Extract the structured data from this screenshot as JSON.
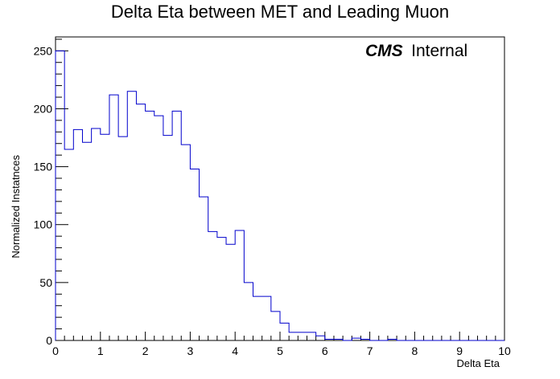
{
  "chart_data": {
    "type": "bar",
    "style": "step-histogram",
    "title": "Delta Eta between MET and Leading Muon",
    "xlabel": "Delta Eta",
    "ylabel": "Normalized Instatnces",
    "watermark": {
      "bold": "CMS",
      "text": "Internal"
    },
    "xlim": [
      0,
      10
    ],
    "ylim": [
      0,
      262
    ],
    "bin_width": 0.2,
    "x_ticks": [
      "0",
      "1",
      "2",
      "3",
      "4",
      "5",
      "6",
      "7",
      "8",
      "9",
      "10"
    ],
    "y_ticks": [
      "0",
      "50",
      "100",
      "150",
      "200",
      "250"
    ],
    "grid": false,
    "line_color": "#0000cc",
    "bin_edges_start": [
      0.0,
      0.2,
      0.4,
      0.6,
      0.8,
      1.0,
      1.2,
      1.4,
      1.6,
      1.8,
      2.0,
      2.2,
      2.4,
      2.6,
      2.8,
      3.0,
      3.2,
      3.4,
      3.6,
      3.8,
      4.0,
      4.2,
      4.4,
      4.6,
      4.8,
      5.0,
      5.2,
      5.4,
      5.6,
      5.8,
      6.0,
      6.2,
      6.4,
      6.6,
      6.8,
      7.0,
      7.2,
      7.4,
      7.6,
      7.8,
      8.0,
      8.2,
      8.4,
      8.6,
      8.8,
      9.0,
      9.2,
      9.4,
      9.6,
      9.8
    ],
    "values": [
      250,
      165,
      182,
      171,
      183,
      178,
      212,
      176,
      215,
      204,
      198,
      194,
      177,
      198,
      169,
      148,
      124,
      94,
      89,
      83,
      95,
      50,
      38,
      38,
      25,
      15,
      7,
      7,
      7,
      4,
      1,
      1,
      0,
      2,
      1,
      0,
      0,
      1,
      0,
      0,
      0,
      0,
      0,
      0,
      0,
      0,
      0,
      0,
      0,
      0
    ]
  }
}
